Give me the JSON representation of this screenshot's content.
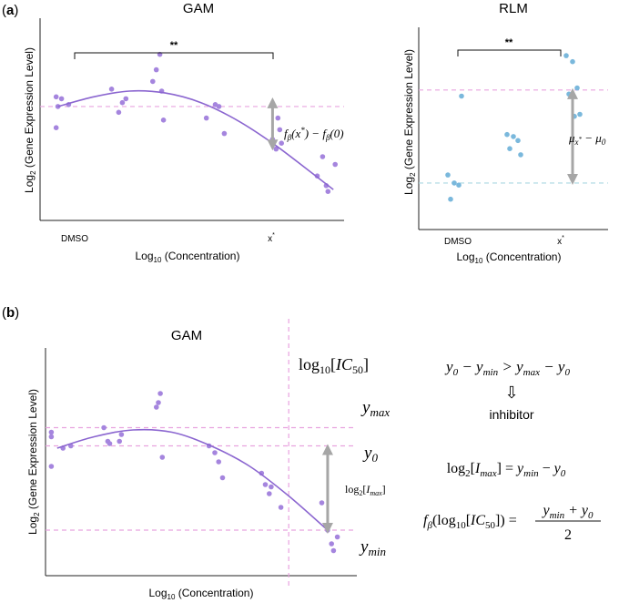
{
  "panels": {
    "a": {
      "label": "(a)"
    },
    "b": {
      "label": "(b)"
    }
  },
  "colors": {
    "gam_points": "#a585de",
    "gam_curve": "#8b66d0",
    "rlm_points": "#7ab8dc",
    "pink_dash": "#e8a3df",
    "blue_dash": "#a9d6e1",
    "gray_arrow": "#a6a6a6"
  },
  "annotations": {
    "a_gam_sig": "**",
    "a_rlm_sig": "**",
    "a_gam_diff": "fβ(x*) − fβ(0)",
    "a_rlm_diff": "μx* − μ0",
    "b_ic50": "log10[IC50]",
    "b_ymax": "ymax",
    "b_y0": "y0",
    "b_ymin": "ymin",
    "b_imax": "log2[Imax]"
  },
  "equations": {
    "ineq": "y0 − ymin > ymax − y0",
    "arrow": "⇩",
    "inhibitor": "inhibitor",
    "imax_eq": "log2[Imax] = ymin − y0",
    "f_eq_lhs": "fβ(log10[IC50]) =",
    "f_eq_num": "ymin + y0",
    "f_eq_den": "2"
  },
  "chart_data": [
    {
      "id": "a-gam",
      "type": "scatter",
      "title": "GAM",
      "xlabel": "Log10 (Concentration)",
      "ylabel": "Log2 (Gene Expression Level)",
      "x_ticks": [
        {
          "x": 0,
          "label": "DMSO"
        },
        {
          "x": 12,
          "label": "x*"
        }
      ],
      "xlim": [
        -1,
        16
      ],
      "ylim": [
        0,
        10
      ],
      "points": [
        [
          -0.1,
          6.4
        ],
        [
          -0.1,
          4.8
        ],
        [
          0.0,
          5.9
        ],
        [
          0.2,
          6.3
        ],
        [
          0.6,
          6.0
        ],
        [
          3.0,
          6.8
        ],
        [
          3.4,
          5.6
        ],
        [
          3.6,
          6.1
        ],
        [
          3.8,
          6.3
        ],
        [
          5.3,
          7.2
        ],
        [
          5.5,
          7.8
        ],
        [
          5.7,
          8.6
        ],
        [
          5.8,
          6.7
        ],
        [
          5.9,
          5.2
        ],
        [
          8.3,
          5.3
        ],
        [
          8.8,
          6.0
        ],
        [
          9.0,
          5.9
        ],
        [
          9.3,
          4.5
        ],
        [
          12.0,
          4.2
        ],
        [
          12.2,
          3.7
        ],
        [
          12.3,
          5.3
        ],
        [
          12.4,
          4.7
        ],
        [
          12.5,
          4.0
        ],
        [
          14.5,
          2.3
        ],
        [
          14.8,
          3.3
        ],
        [
          15.0,
          1.8
        ],
        [
          15.1,
          1.5
        ],
        [
          15.5,
          2.9
        ]
      ],
      "curve": [
        [
          0.0,
          5.9
        ],
        [
          2.0,
          6.4
        ],
        [
          4.0,
          6.7
        ],
        [
          6.0,
          6.6
        ],
        [
          8.0,
          6.1
        ],
        [
          10.0,
          5.2
        ],
        [
          12.0,
          4.0
        ],
        [
          14.0,
          2.6
        ],
        [
          15.4,
          1.6
        ]
      ],
      "reference_line_y": 5.9,
      "arrow": {
        "x": 12.0,
        "from": 5.9,
        "to": 4.0
      }
    },
    {
      "id": "a-rlm",
      "type": "scatter",
      "title": "RLM",
      "xlabel": "Log10 (Concentration)",
      "ylabel": "Log2 (Gene Expression Level)",
      "x_ticks": [
        {
          "x": 0,
          "label": "DMSO"
        },
        {
          "x": 2,
          "label": "x*"
        }
      ],
      "xlim": [
        -0.6,
        2.6
      ],
      "ylim": [
        0,
        10
      ],
      "groups": [
        {
          "x": 0,
          "values": [
            2.7,
            2.3,
            2.2,
            1.5,
            6.6
          ]
        },
        {
          "x": 1,
          "values": [
            4.7,
            4.6,
            4.4,
            4.0,
            3.7
          ]
        },
        {
          "x": 2,
          "values": [
            8.6,
            8.3,
            7.0,
            6.7,
            5.7,
            5.6
          ]
        }
      ],
      "reference_lines_y": [
        6.9,
        2.3
      ],
      "arrow": {
        "x": 2,
        "from": 6.9,
        "to": 2.3
      }
    },
    {
      "id": "b-gam",
      "type": "scatter",
      "title": "GAM",
      "xlabel": "Log10 (Concentration)",
      "ylabel": "Log2 (Gene Expression Level)",
      "xlim": [
        0,
        16
      ],
      "ylim": [
        0,
        10
      ],
      "points": [
        [
          0.3,
          6.3
        ],
        [
          0.3,
          6.1
        ],
        [
          0.3,
          4.8
        ],
        [
          0.9,
          5.6
        ],
        [
          1.3,
          5.7
        ],
        [
          3.0,
          6.5
        ],
        [
          3.2,
          5.9
        ],
        [
          3.3,
          5.8
        ],
        [
          3.8,
          5.9
        ],
        [
          3.9,
          6.2
        ],
        [
          5.7,
          7.4
        ],
        [
          5.8,
          7.6
        ],
        [
          5.9,
          8.0
        ],
        [
          6.0,
          5.2
        ],
        [
          8.4,
          5.7
        ],
        [
          8.7,
          5.4
        ],
        [
          8.9,
          5.0
        ],
        [
          9.1,
          4.3
        ],
        [
          11.1,
          4.5
        ],
        [
          11.3,
          4.0
        ],
        [
          11.5,
          3.6
        ],
        [
          11.6,
          3.9
        ],
        [
          12.1,
          3.0
        ],
        [
          14.2,
          3.2
        ],
        [
          14.5,
          2.0
        ],
        [
          14.7,
          1.4
        ],
        [
          14.8,
          1.1
        ],
        [
          15.0,
          1.7
        ]
      ],
      "curve": [
        [
          0.6,
          5.6
        ],
        [
          2.5,
          6.1
        ],
        [
          4.5,
          6.4
        ],
        [
          6.5,
          6.3
        ],
        [
          8.5,
          5.7
        ],
        [
          10.5,
          4.8
        ],
        [
          12.5,
          3.5
        ],
        [
          14.5,
          2.0
        ]
      ],
      "reference_lines_y": [
        6.5,
        5.7,
        2.0
      ],
      "ic50_x": 12.5,
      "arrow": {
        "x": 14.5,
        "from": 5.7,
        "to": 2.0
      }
    }
  ]
}
